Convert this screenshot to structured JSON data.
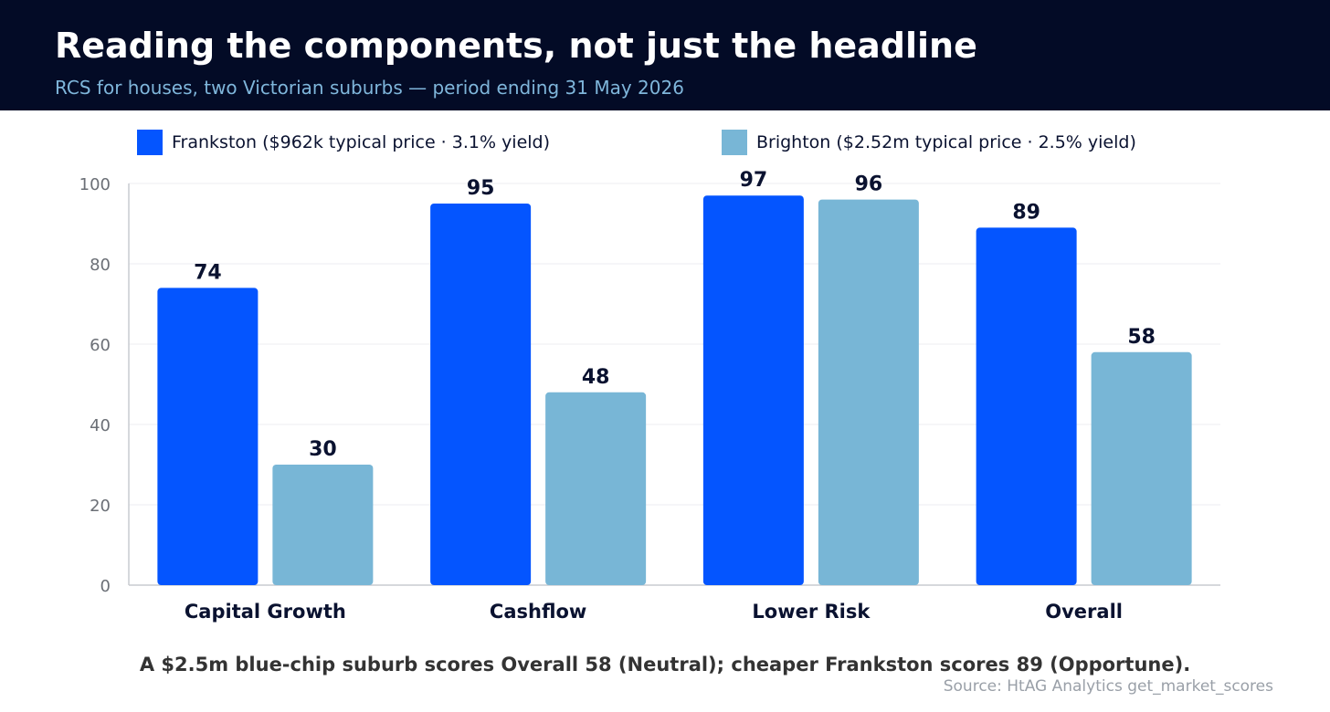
{
  "header": {
    "title": "Reading the components, not just the headline",
    "subtitle": "RCS for houses, two Victorian suburbs — period ending 31 May 2026"
  },
  "legend": [
    {
      "label": "Frankston  ($962k typical price · 3.1% yield)",
      "color": "#0455ff"
    },
    {
      "label": "Brighton  ($2.52m typical price · 2.5% yield)",
      "color": "#78b6d6"
    }
  ],
  "chart_data": {
    "type": "bar",
    "categories": [
      "Capital Growth",
      "Cashflow",
      "Lower Risk",
      "Overall"
    ],
    "series": [
      {
        "name": "Frankston  ($962k typical price · 3.1% yield)",
        "color": "#0455ff",
        "values": [
          74,
          95,
          97,
          89
        ]
      },
      {
        "name": "Brighton  ($2.52m typical price · 2.5% yield)",
        "color": "#78b6d6",
        "values": [
          30,
          48,
          96,
          58
        ]
      }
    ],
    "ylim": [
      0,
      100
    ],
    "yticks": [
      0,
      20,
      40,
      60,
      80,
      100
    ],
    "grid": true,
    "legend_position": "top"
  },
  "caption": "A $2.5m blue-chip suburb scores Overall 58 (Neutral); cheaper Frankston scores 89 (Opportune).",
  "source": "Source: HtAG Analytics get_market_scores"
}
